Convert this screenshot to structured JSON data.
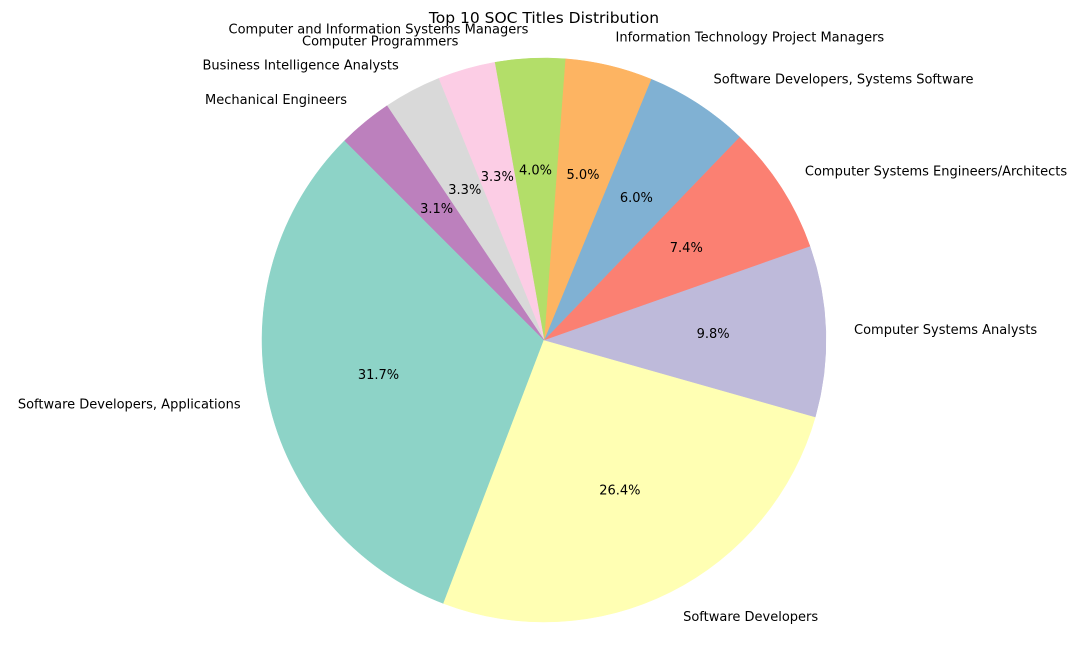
{
  "chart_data": {
    "type": "pie",
    "title": "Top 10 SOC Titles Distribution",
    "start_angle_deg": 135,
    "direction": "counterclockwise",
    "slices": [
      {
        "label": "Software Developers, Applications",
        "value": 31.7,
        "pct_text": "31.7%",
        "color": "#8dd3c7"
      },
      {
        "label": "Software Developers",
        "value": 26.4,
        "pct_text": "26.4%",
        "color": "#ffffb3"
      },
      {
        "label": "Computer Systems Analysts",
        "value": 9.8,
        "pct_text": "9.8%",
        "color": "#bebada"
      },
      {
        "label": "Computer Systems Engineers/Architects",
        "value": 7.4,
        "pct_text": "7.4%",
        "color": "#fb8072"
      },
      {
        "label": "Software Developers, Systems Software",
        "value": 6.0,
        "pct_text": "6.0%",
        "color": "#80b1d3"
      },
      {
        "label": "Information Technology Project Managers",
        "value": 5.0,
        "pct_text": "5.0%",
        "color": "#fdb462"
      },
      {
        "label": "Computer and Information Systems Managers",
        "value": 4.0,
        "pct_text": "4.0%",
        "color": "#b3de69"
      },
      {
        "label": "Computer Programmers",
        "value": 3.3,
        "pct_text": "3.3%",
        "color": "#fccde5"
      },
      {
        "label": "Business Intelligence Analysts",
        "value": 3.3,
        "pct_text": "3.3%",
        "color": "#d9d9d9"
      },
      {
        "label": "Mechanical Engineers",
        "value": 3.1,
        "pct_text": "3.1%",
        "color": "#bc80bd"
      }
    ]
  }
}
